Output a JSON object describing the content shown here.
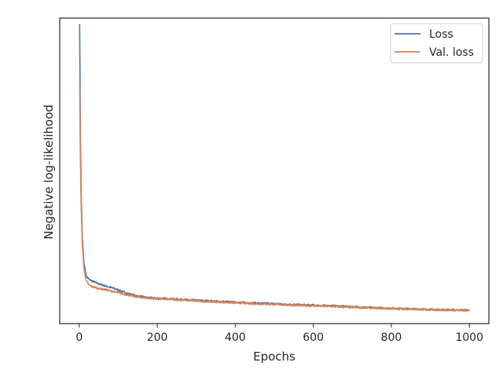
{
  "chart_data": {
    "type": "line",
    "title": "",
    "xlabel": "Epochs",
    "ylabel": "Negative log-likelihood",
    "xlim": [
      -50,
      1050
    ],
    "ylim": [
      0.0,
      1.0
    ],
    "x_ticks": [
      0,
      200,
      400,
      600,
      800,
      1000
    ],
    "y_ticks": [],
    "grid": false,
    "legend_position": "top-right",
    "series": [
      {
        "name": "Loss",
        "color": "#4c72b0",
        "points": [
          [
            1,
            0.98
          ],
          [
            2,
            0.82
          ],
          [
            3,
            0.62
          ],
          [
            5,
            0.42
          ],
          [
            8,
            0.28
          ],
          [
            12,
            0.2
          ],
          [
            18,
            0.155
          ],
          [
            25,
            0.145
          ],
          [
            35,
            0.138
          ],
          [
            50,
            0.13
          ],
          [
            70,
            0.122
          ],
          [
            90,
            0.115
          ],
          [
            110,
            0.105
          ],
          [
            130,
            0.096
          ],
          [
            150,
            0.09
          ],
          [
            175,
            0.085
          ],
          [
            200,
            0.083
          ],
          [
            250,
            0.08
          ],
          [
            300,
            0.076
          ],
          [
            350,
            0.073
          ],
          [
            400,
            0.07
          ],
          [
            450,
            0.067
          ],
          [
            500,
            0.065
          ],
          [
            550,
            0.062
          ],
          [
            600,
            0.06
          ],
          [
            650,
            0.058
          ],
          [
            700,
            0.055
          ],
          [
            750,
            0.052
          ],
          [
            800,
            0.05
          ],
          [
            850,
            0.048
          ],
          [
            900,
            0.046
          ],
          [
            950,
            0.045
          ],
          [
            1000,
            0.044
          ]
        ]
      },
      {
        "name": "Val. loss",
        "color": "#dd8452",
        "points": [
          [
            1,
            0.78
          ],
          [
            2,
            0.66
          ],
          [
            3,
            0.53
          ],
          [
            5,
            0.38
          ],
          [
            8,
            0.26
          ],
          [
            12,
            0.18
          ],
          [
            18,
            0.14
          ],
          [
            25,
            0.126
          ],
          [
            35,
            0.12
          ],
          [
            50,
            0.115
          ],
          [
            70,
            0.11
          ],
          [
            90,
            0.104
          ],
          [
            110,
            0.098
          ],
          [
            130,
            0.092
          ],
          [
            150,
            0.087
          ],
          [
            175,
            0.083
          ],
          [
            200,
            0.081
          ],
          [
            250,
            0.078
          ],
          [
            300,
            0.074
          ],
          [
            350,
            0.071
          ],
          [
            400,
            0.068
          ],
          [
            450,
            0.065
          ],
          [
            500,
            0.063
          ],
          [
            550,
            0.06
          ],
          [
            600,
            0.058
          ],
          [
            650,
            0.056
          ],
          [
            700,
            0.053
          ],
          [
            750,
            0.051
          ],
          [
            800,
            0.049
          ],
          [
            850,
            0.047
          ],
          [
            900,
            0.045
          ],
          [
            950,
            0.044
          ],
          [
            1000,
            0.043
          ]
        ]
      }
    ]
  }
}
